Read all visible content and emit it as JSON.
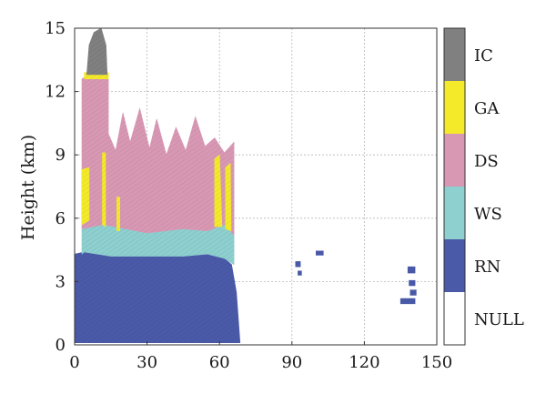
{
  "chart_data": {
    "type": "area",
    "title": "",
    "xlabel": "",
    "ylabel": "Height (km)",
    "xlim": [
      0,
      150
    ],
    "ylim": [
      0,
      15
    ],
    "xticks": [
      "0",
      "30",
      "60",
      "90",
      "120",
      "150"
    ],
    "yticks": [
      "0",
      "3",
      "6",
      "9",
      "12",
      "15"
    ],
    "grid": true,
    "colorbar": {
      "position": "right",
      "classes": [
        {
          "label": "NULL",
          "color": "#ffffff"
        },
        {
          "label": "RN",
          "color": "#4a5aa8"
        },
        {
          "label": "WS",
          "color": "#8ecfcf"
        },
        {
          "label": "DS",
          "color": "#d898b4"
        },
        {
          "label": "GA",
          "color": "#f4ea2a"
        },
        {
          "label": "IC",
          "color": "#808080"
        }
      ]
    },
    "regions": [
      {
        "class": "RN",
        "polygon": [
          [
            0,
            0.1
          ],
          [
            0,
            4.3
          ],
          [
            4,
            4.4
          ],
          [
            15,
            4.2
          ],
          [
            30,
            4.2
          ],
          [
            45,
            4.2
          ],
          [
            55,
            4.3
          ],
          [
            62,
            4.1
          ],
          [
            65,
            3.8
          ],
          [
            67,
            2.5
          ],
          [
            68.5,
            0.1
          ]
        ]
      },
      {
        "class": "WS",
        "polygon": [
          [
            3,
            4.3
          ],
          [
            3,
            5.5
          ],
          [
            12,
            5.7
          ],
          [
            30,
            5.3
          ],
          [
            45,
            5.5
          ],
          [
            55,
            5.4
          ],
          [
            62,
            5.7
          ],
          [
            66,
            5.2
          ],
          [
            66,
            3.8
          ],
          [
            62,
            4.1
          ],
          [
            55,
            4.3
          ],
          [
            45,
            4.2
          ],
          [
            30,
            4.2
          ],
          [
            15,
            4.2
          ],
          [
            4,
            4.4
          ]
        ]
      },
      {
        "class": "DS",
        "polygon": [
          [
            3,
            5.5
          ],
          [
            3,
            12.6
          ],
          [
            6,
            12.8
          ],
          [
            14,
            12.6
          ],
          [
            14,
            10
          ],
          [
            17,
            9.2
          ],
          [
            20,
            11
          ],
          [
            23,
            9.6
          ],
          [
            27,
            11.2
          ],
          [
            31,
            9.3
          ],
          [
            34,
            10.7
          ],
          [
            38,
            9
          ],
          [
            42,
            10.3
          ],
          [
            46,
            9.2
          ],
          [
            50,
            10.8
          ],
          [
            54,
            9.4
          ],
          [
            58,
            9.8
          ],
          [
            62,
            9.1
          ],
          [
            66,
            9.6
          ],
          [
            66,
            5.2
          ],
          [
            62,
            5.7
          ],
          [
            55,
            5.4
          ],
          [
            45,
            5.5
          ],
          [
            30,
            5.3
          ],
          [
            12,
            5.7
          ]
        ]
      },
      {
        "class": "GA",
        "polygon": [
          [
            3,
            5.7
          ],
          [
            3,
            8.3
          ],
          [
            6,
            8.4
          ],
          [
            6,
            5.9
          ]
        ]
      },
      {
        "class": "GA",
        "polygon": [
          [
            11.5,
            5.7
          ],
          [
            11.5,
            9.1
          ],
          [
            12.8,
            9.1
          ],
          [
            12.8,
            5.6
          ]
        ]
      },
      {
        "class": "GA",
        "polygon": [
          [
            17.5,
            5.4
          ],
          [
            17.5,
            7
          ],
          [
            18.7,
            7
          ],
          [
            18.7,
            5.4
          ]
        ]
      },
      {
        "class": "GA",
        "polygon": [
          [
            58,
            5.6
          ],
          [
            58,
            8.8
          ],
          [
            60,
            9
          ],
          [
            61,
            5.6
          ]
        ]
      },
      {
        "class": "GA",
        "polygon": [
          [
            62.5,
            5.5
          ],
          [
            62.5,
            8.4
          ],
          [
            64.5,
            8.6
          ],
          [
            64.8,
            5.4
          ]
        ]
      },
      {
        "class": "GA",
        "polygon": [
          [
            4,
            12.6
          ],
          [
            4,
            12.9
          ],
          [
            14,
            12.9
          ],
          [
            14,
            12.6
          ]
        ]
      },
      {
        "class": "IC",
        "polygon": [
          [
            5,
            12.8
          ],
          [
            6,
            14.2
          ],
          [
            8,
            14.8
          ],
          [
            11,
            15
          ],
          [
            13,
            14.2
          ],
          [
            13.5,
            12.8
          ]
        ]
      },
      {
        "class": "RN",
        "polygon": [
          [
            91.5,
            3.7
          ],
          [
            91.5,
            3.95
          ],
          [
            93.5,
            3.95
          ],
          [
            93.5,
            3.7
          ]
        ]
      },
      {
        "class": "RN",
        "polygon": [
          [
            92.5,
            3.3
          ],
          [
            92.5,
            3.5
          ],
          [
            94,
            3.5
          ],
          [
            94,
            3.3
          ]
        ]
      },
      {
        "class": "RN",
        "polygon": [
          [
            100,
            4.25
          ],
          [
            100,
            4.45
          ],
          [
            103,
            4.45
          ],
          [
            103,
            4.25
          ]
        ]
      },
      {
        "class": "RN",
        "polygon": [
          [
            138,
            3.4
          ],
          [
            138,
            3.7
          ],
          [
            141,
            3.7
          ],
          [
            141,
            3.4
          ]
        ]
      },
      {
        "class": "RN",
        "polygon": [
          [
            138.5,
            2.8
          ],
          [
            138.5,
            3.05
          ],
          [
            141,
            3.05
          ],
          [
            141,
            2.8
          ]
        ]
      },
      {
        "class": "RN",
        "polygon": [
          [
            139,
            2.35
          ],
          [
            139,
            2.6
          ],
          [
            141.5,
            2.6
          ],
          [
            141.5,
            2.35
          ]
        ]
      },
      {
        "class": "RN",
        "polygon": [
          [
            135,
            1.95
          ],
          [
            135,
            2.2
          ],
          [
            141,
            2.2
          ],
          [
            141,
            1.95
          ]
        ]
      }
    ]
  }
}
